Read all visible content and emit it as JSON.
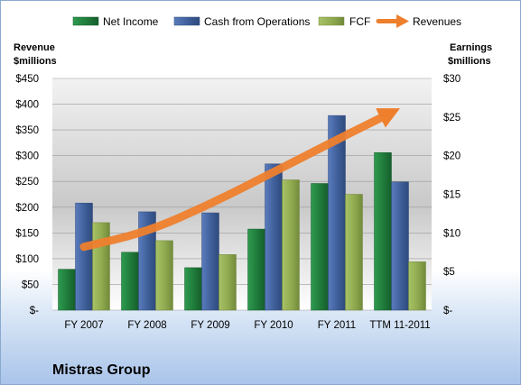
{
  "company_name": "Mistras Group",
  "chart_data": {
    "type": "bar",
    "categories": [
      "FY 2007",
      "FY 2008",
      "FY 2009",
      "FY 2010",
      "FY 2011",
      "TTM 11-2011"
    ],
    "series": [
      {
        "name": "Net Income",
        "axis": "right",
        "kind": "bar",
        "color": "#1f7a3a",
        "values": [
          5.3,
          7.5,
          5.5,
          10.5,
          16.4,
          20.4
        ]
      },
      {
        "name": "Cash from Operations",
        "axis": "left",
        "kind": "bar",
        "color": "#3f5f9a",
        "values": [
          208,
          191,
          189,
          284,
          378,
          249
        ]
      },
      {
        "name": "FCF",
        "axis": "left",
        "kind": "bar",
        "color": "#8fa94f",
        "values": [
          170,
          135,
          108,
          253,
          225,
          94
        ]
      },
      {
        "name": "Revenues",
        "axis": "left",
        "kind": "arrow-line",
        "color": "#ee7f2d",
        "values": [
          123,
          152,
          206,
          268,
          331,
          392
        ]
      }
    ],
    "left_axis": {
      "title_line1": "Revenue",
      "title_line2": "$millions",
      "min": 0,
      "max": 450,
      "step": 50,
      "tick_labels": [
        "$-",
        "$50",
        "$100",
        "$150",
        "$200",
        "$250",
        "$300",
        "$350",
        "$400",
        "$450"
      ]
    },
    "right_axis": {
      "title_line1": "Earnings",
      "title_line2": "$millions",
      "min": 0,
      "max": 30,
      "step": 5,
      "tick_labels": [
        "$-",
        "$5",
        "$10",
        "$15",
        "$20",
        "$25",
        "$30"
      ]
    },
    "legend_position": "top",
    "grid": "horizontal"
  }
}
